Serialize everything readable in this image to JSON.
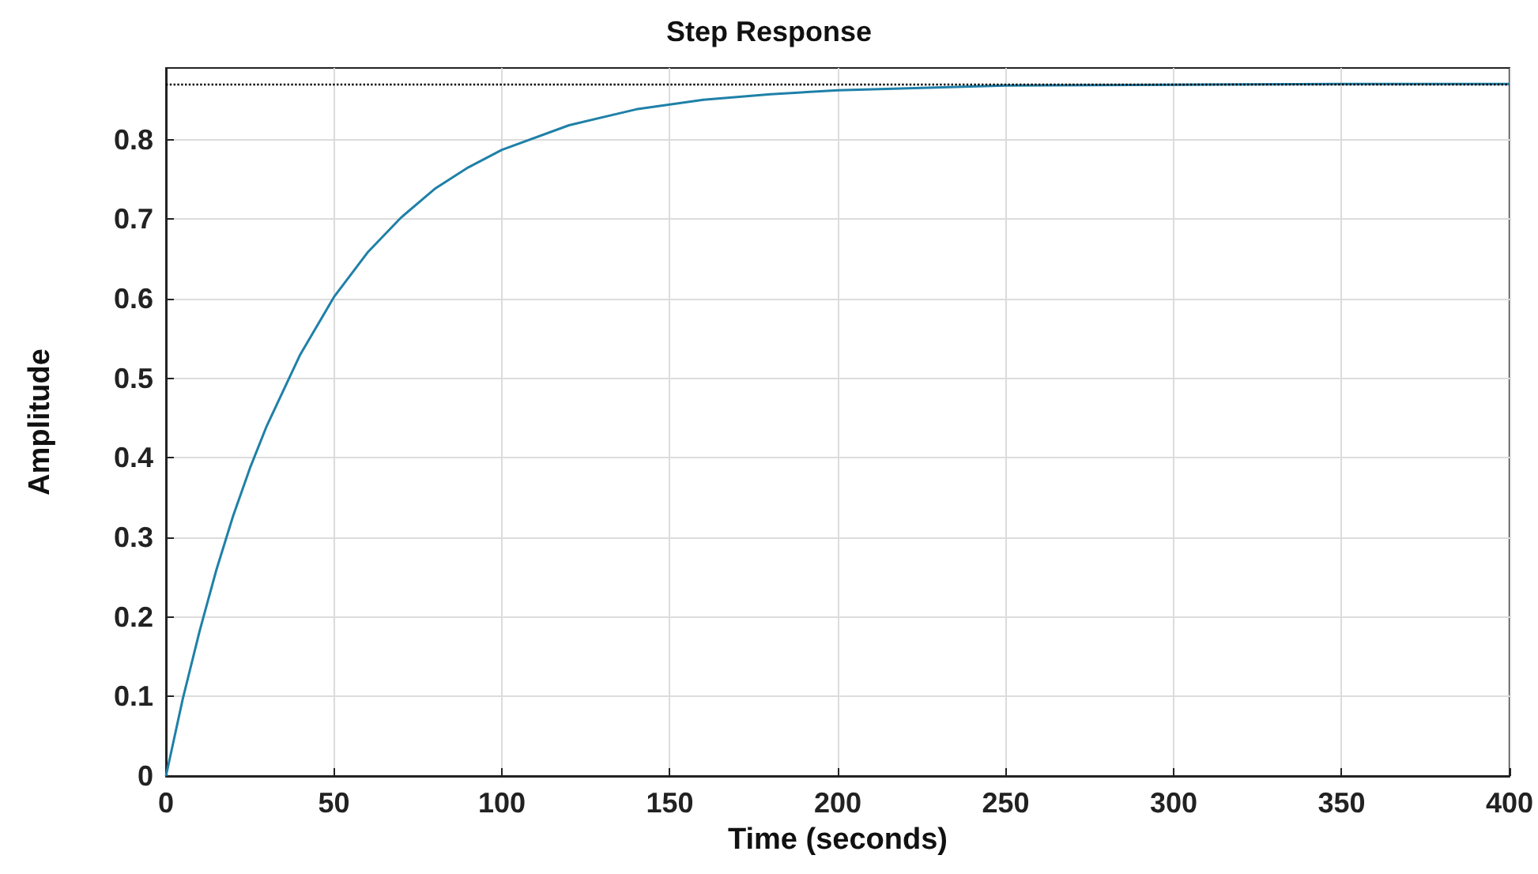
{
  "chart_data": {
    "type": "line",
    "title": "Step Response",
    "xlabel": "Time (seconds)",
    "ylabel": "Amplitude",
    "x": [
      0,
      5,
      10,
      15,
      20,
      25,
      30,
      40,
      50,
      60,
      70,
      80,
      90,
      100,
      120,
      140,
      160,
      180,
      200,
      250,
      300,
      350,
      400
    ],
    "series": [
      {
        "color": "#1f80a8",
        "values": [
          0,
          0.097,
          0.182,
          0.259,
          0.327,
          0.387,
          0.44,
          0.53,
          0.602,
          0.658,
          0.702,
          0.738,
          0.765,
          0.787,
          0.818,
          0.838,
          0.85,
          0.857,
          0.862,
          0.868,
          0.869,
          0.87,
          0.87
        ]
      }
    ],
    "xlim": [
      0,
      400
    ],
    "xticks": [
      0,
      50,
      100,
      150,
      200,
      250,
      300,
      350,
      400
    ],
    "ylim": [
      0,
      0.89
    ],
    "yticks": [
      0,
      0.1,
      0.2,
      0.3,
      0.4,
      0.5,
      0.6,
      0.7,
      0.8
    ],
    "ref_lines": [
      {
        "axis": "y",
        "value": 0.87,
        "color": "#000000",
        "line_style": "dotted"
      }
    ],
    "grid": true,
    "marker": "none",
    "line_style": "solid"
  }
}
